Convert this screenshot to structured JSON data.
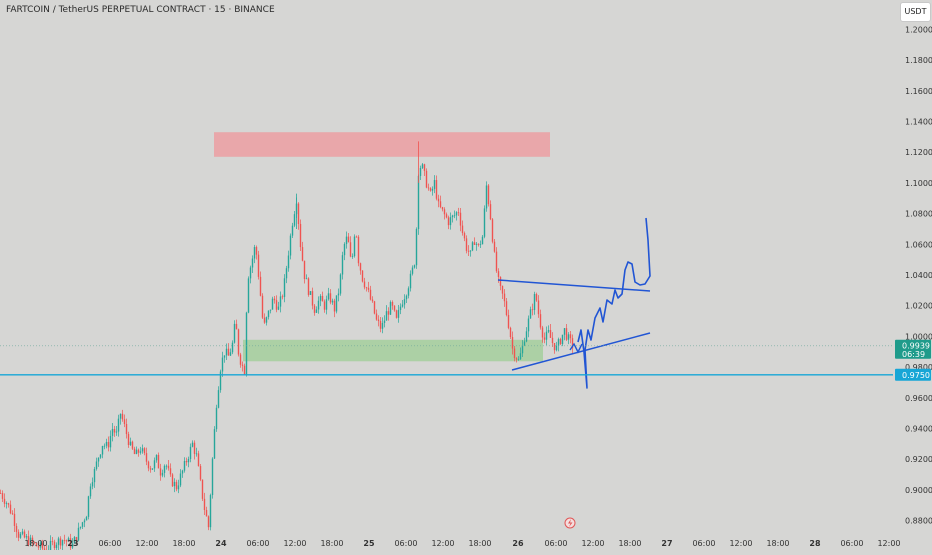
{
  "header": {
    "symbol_title": "FARTCOIN / TetherUS PERPETUAL CONTRACT · 15 · BINANCE",
    "currency_button": "USDT"
  },
  "colors": {
    "background": "#d6d6d4",
    "up": "#26a69a",
    "down": "#ef5350",
    "drawing_blue": "#2155d4",
    "level_line": "#17a6d6",
    "resistance_zone": "#eba2a5",
    "support_zone": "#a5cf9c"
  },
  "chart_data": {
    "type": "candlestick",
    "ylim": [
      0.87,
      1.21
    ],
    "y_ticks": [
      "1.2000",
      "1.1800",
      "1.1600",
      "1.1400",
      "1.1200",
      "1.1000",
      "1.0800",
      "1.0600",
      "1.0400",
      "1.0200",
      "1.0000",
      "0.9800",
      "0.9600",
      "0.9400",
      "0.9200",
      "0.9000",
      "0.8800"
    ],
    "x_ticks": [
      "18:00",
      "23",
      "06:00",
      "12:00",
      "18:00",
      "24",
      "06:00",
      "12:00",
      "18:00",
      "25",
      "06:00",
      "12:00",
      "18:00",
      "26",
      "06:00",
      "12:00",
      "18:00",
      "27",
      "06:00",
      "12:00",
      "18:00",
      "28",
      "06:00",
      "12:00"
    ],
    "bold_x_ticks": [
      "23",
      "24",
      "25",
      "26",
      "27",
      "28"
    ],
    "price_path": [
      [
        0,
        0.898
      ],
      [
        6,
        0.892
      ],
      [
        12,
        0.884
      ],
      [
        18,
        0.871
      ],
      [
        26,
        0.868
      ],
      [
        35,
        0.864
      ],
      [
        45,
        0.861
      ],
      [
        55,
        0.866
      ],
      [
        63,
        0.868
      ],
      [
        72,
        0.864
      ],
      [
        80,
        0.876
      ],
      [
        86,
        0.885
      ],
      [
        90,
        0.905
      ],
      [
        94,
        0.912
      ],
      [
        98,
        0.922
      ],
      [
        102,
        0.93
      ],
      [
        107,
        0.928
      ],
      [
        112,
        0.94
      ],
      [
        116,
        0.936
      ],
      [
        120,
        0.95
      ],
      [
        125,
        0.939
      ],
      [
        130,
        0.928
      ],
      [
        135,
        0.922
      ],
      [
        140,
        0.927
      ],
      [
        146,
        0.919
      ],
      [
        151,
        0.914
      ],
      [
        156,
        0.92
      ],
      [
        160,
        0.912
      ],
      [
        165,
        0.918
      ],
      [
        170,
        0.907
      ],
      [
        176,
        0.902
      ],
      [
        182,
        0.912
      ],
      [
        187,
        0.921
      ],
      [
        192,
        0.93
      ],
      [
        196,
        0.922
      ],
      [
        200,
        0.904
      ],
      [
        204,
        0.888
      ],
      [
        208,
        0.876
      ],
      [
        212,
        0.92
      ],
      [
        216,
        0.957
      ],
      [
        220,
        0.98
      ],
      [
        224,
        0.99
      ],
      [
        228,
        0.987
      ],
      [
        232,
        0.995
      ],
      [
        235,
        1.01
      ],
      [
        238,
        0.99
      ],
      [
        241,
        0.982
      ],
      [
        244,
        0.978
      ],
      [
        247,
        1.038
      ],
      [
        251,
        1.048
      ],
      [
        255,
        1.06
      ],
      [
        259,
        1.034
      ],
      [
        263,
        1.005
      ],
      [
        268,
        1.015
      ],
      [
        273,
        1.025
      ],
      [
        278,
        1.018
      ],
      [
        283,
        1.03
      ],
      [
        288,
        1.055
      ],
      [
        292,
        1.075
      ],
      [
        296,
        1.09
      ],
      [
        300,
        1.06
      ],
      [
        304,
        1.04
      ],
      [
        309,
        1.028
      ],
      [
        314,
        1.018
      ],
      [
        319,
        1.024
      ],
      [
        324,
        1.02
      ],
      [
        329,
        1.026
      ],
      [
        334,
        1.018
      ],
      [
        339,
        1.032
      ],
      [
        343,
        1.058
      ],
      [
        347,
        1.065
      ],
      [
        351,
        1.045
      ],
      [
        355,
        1.075
      ],
      [
        358,
        1.05
      ],
      [
        362,
        1.038
      ],
      [
        367,
        1.03
      ],
      [
        372,
        1.02
      ],
      [
        376,
        1.01
      ],
      [
        381,
        1.005
      ],
      [
        386,
        1.015
      ],
      [
        391,
        1.02
      ],
      [
        396,
        1.01
      ],
      [
        401,
        1.022
      ],
      [
        406,
        1.03
      ],
      [
        411,
        1.04
      ],
      [
        415,
        1.052
      ],
      [
        418,
        1.108
      ],
      [
        421,
        1.112
      ],
      [
        425,
        1.102
      ],
      [
        430,
        1.092
      ],
      [
        434,
        1.1
      ],
      [
        438,
        1.085
      ],
      [
        443,
        1.08
      ],
      [
        448,
        1.075
      ],
      [
        453,
        1.078
      ],
      [
        458,
        1.082
      ],
      [
        462,
        1.068
      ],
      [
        466,
        1.058
      ],
      [
        470,
        1.053
      ],
      [
        474,
        1.063
      ],
      [
        478,
        1.058
      ],
      [
        482,
        1.065
      ],
      [
        486,
        1.098
      ],
      [
        490,
        1.078
      ],
      [
        494,
        1.052
      ],
      [
        497,
        1.038
      ],
      [
        500,
        1.03
      ],
      [
        503,
        1.025
      ],
      [
        506,
        1.015
      ],
      [
        509,
        1.005
      ],
      [
        512,
        0.992
      ],
      [
        515,
        0.988
      ],
      [
        518,
        0.984
      ],
      [
        521,
        0.99
      ],
      [
        524,
        1.0
      ],
      [
        528,
        1.01
      ],
      [
        532,
        1.02
      ],
      [
        535,
        1.028
      ],
      [
        538,
        1.015
      ],
      [
        541,
        1.005
      ],
      [
        544,
        0.998
      ],
      [
        548,
        1.002
      ],
      [
        552,
        0.996
      ],
      [
        556,
        0.992
      ],
      [
        560,
        0.998
      ],
      [
        564,
        1.004
      ],
      [
        568,
        0.998
      ],
      [
        572,
        0.994
      ]
    ],
    "last_price": "0.9939",
    "countdown": "06:39",
    "level_price": "0.9750",
    "zones": [
      {
        "name": "resistance",
        "from": 1.117,
        "to": 1.133
      },
      {
        "name": "support",
        "from": 0.9838,
        "to": 0.9978
      }
    ]
  }
}
